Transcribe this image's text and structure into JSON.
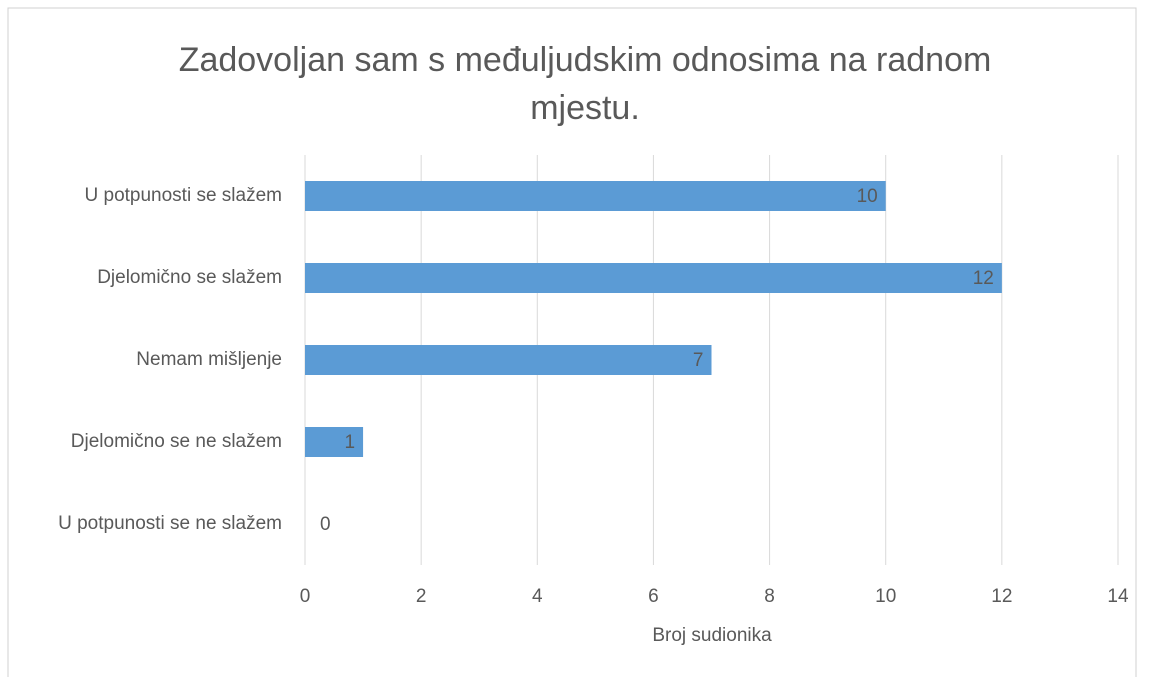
{
  "chart_data": {
    "type": "bar",
    "orientation": "horizontal",
    "title": "Zadovoljan sam s međuljudskim odnosima na radnom mjestu.",
    "categories": [
      "U potpunosti se slažem",
      "Djelomično se slažem",
      "Nemam mišljenje",
      "Djelomično se ne slažem",
      "U potpunosti se ne slažem"
    ],
    "values": [
      10,
      12,
      7,
      1,
      0
    ],
    "color": "#5b9bd5",
    "xlabel": "Broj sudionika",
    "xlim": [
      0,
      14
    ],
    "xticks": [
      0,
      2,
      4,
      6,
      8,
      10,
      12,
      14
    ],
    "grid": true,
    "data_labels": true
  }
}
